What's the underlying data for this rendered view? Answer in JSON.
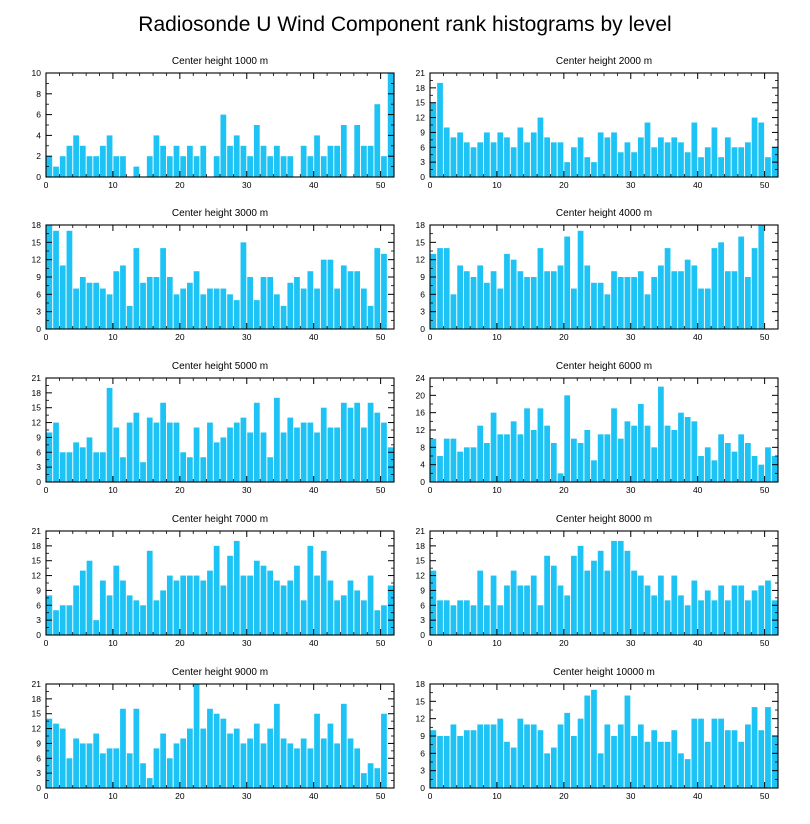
{
  "figure_title": "Radiosonde U Wind Component rank histograms by level",
  "colors": {
    "bar": "#1ec3f5",
    "bar_edge": "#ffffff",
    "axis": "#000000",
    "background": "#ffffff"
  },
  "chart_data": [
    {
      "type": "bar",
      "title": "Center height 1000 m",
      "xlim": [
        0,
        52
      ],
      "ylim": [
        0,
        10
      ],
      "xticks": [
        0,
        10,
        20,
        30,
        40,
        50
      ],
      "yticks": [
        0,
        2,
        4,
        6,
        8,
        10
      ],
      "values": [
        2,
        1,
        2,
        3,
        4,
        3,
        2,
        2,
        3,
        4,
        2,
        2,
        0,
        1,
        0,
        2,
        4,
        3,
        2,
        3,
        2,
        3,
        2,
        3,
        0,
        2,
        6,
        3,
        4,
        3,
        2,
        5,
        3,
        2,
        3,
        2,
        2,
        0,
        3,
        2,
        4,
        2,
        3,
        3,
        5,
        0,
        5,
        3,
        3,
        7,
        2,
        10
      ]
    },
    {
      "type": "bar",
      "title": "Center height 2000 m",
      "xlim": [
        0,
        52
      ],
      "ylim": [
        0,
        21
      ],
      "xticks": [
        0,
        10,
        20,
        30,
        40,
        50
      ],
      "yticks": [
        0,
        3,
        6,
        9,
        12,
        15,
        18,
        21
      ],
      "values": [
        15,
        19,
        10,
        8,
        9,
        7,
        6,
        7,
        9,
        7,
        9,
        8,
        6,
        10,
        7,
        9,
        12,
        8,
        7,
        7,
        3,
        6,
        8,
        4,
        3,
        9,
        8,
        9,
        5,
        7,
        5,
        8,
        11,
        6,
        8,
        7,
        8,
        7,
        5,
        11,
        4,
        6,
        10,
        4,
        8,
        6,
        6,
        7,
        12,
        11,
        4,
        6
      ]
    },
    {
      "type": "bar",
      "title": "Center height 3000 m",
      "xlim": [
        0,
        52
      ],
      "ylim": [
        0,
        18
      ],
      "xticks": [
        0,
        10,
        20,
        30,
        40,
        50
      ],
      "yticks": [
        0,
        3,
        6,
        9,
        12,
        15,
        18
      ],
      "values": [
        18,
        17,
        11,
        17,
        7,
        9,
        8,
        8,
        7,
        6,
        10,
        11,
        4,
        14,
        8,
        9,
        9,
        14,
        9,
        6,
        7,
        8,
        10,
        6,
        7,
        7,
        7,
        6,
        5,
        15,
        9,
        5,
        9,
        9,
        6,
        4,
        8,
        9,
        7,
        10,
        7,
        12,
        12,
        7,
        11,
        10,
        10,
        7,
        4,
        14,
        13,
        0
      ]
    },
    {
      "type": "bar",
      "title": "Center height 4000 m",
      "xlim": [
        0,
        52
      ],
      "ylim": [
        0,
        18
      ],
      "xticks": [
        0,
        10,
        20,
        30,
        40,
        50
      ],
      "yticks": [
        0,
        3,
        6,
        9,
        12,
        15,
        18
      ],
      "values": [
        13,
        14,
        14,
        6,
        11,
        10,
        9,
        11,
        8,
        10,
        7,
        13,
        12,
        10,
        9,
        9,
        14,
        10,
        10,
        11,
        16,
        7,
        17,
        11,
        8,
        8,
        6,
        10,
        9,
        9,
        9,
        10,
        6,
        9,
        11,
        14,
        10,
        10,
        12,
        11,
        7,
        7,
        14,
        15,
        10,
        10,
        16,
        9,
        14,
        18,
        0,
        0
      ]
    },
    {
      "type": "bar",
      "title": "Center height 5000 m",
      "xlim": [
        0,
        52
      ],
      "ylim": [
        0,
        21
      ],
      "xticks": [
        0,
        10,
        20,
        30,
        40,
        50
      ],
      "yticks": [
        0,
        3,
        6,
        9,
        12,
        15,
        18,
        21
      ],
      "values": [
        10,
        12,
        6,
        6,
        8,
        7,
        9,
        6,
        6,
        19,
        11,
        5,
        12,
        14,
        4,
        13,
        12,
        16,
        12,
        12,
        6,
        5,
        11,
        5,
        12,
        8,
        9,
        11,
        12,
        13,
        10,
        16,
        10,
        5,
        17,
        10,
        13,
        11,
        12,
        12,
        10,
        15,
        11,
        11,
        16,
        15,
        16,
        11,
        16,
        14,
        12,
        7
      ]
    },
    {
      "type": "bar",
      "title": "Center height 6000 m",
      "xlim": [
        0,
        52
      ],
      "ylim": [
        0,
        24
      ],
      "xticks": [
        0,
        10,
        20,
        30,
        40,
        50
      ],
      "yticks": [
        0,
        4,
        8,
        12,
        16,
        20,
        24
      ],
      "values": [
        10,
        6,
        10,
        10,
        7,
        8,
        8,
        13,
        9,
        16,
        11,
        11,
        14,
        11,
        17,
        12,
        17,
        13,
        9,
        2,
        20,
        10,
        9,
        12,
        5,
        11,
        11,
        17,
        10,
        14,
        13,
        18,
        13,
        8,
        22,
        13,
        12,
        16,
        15,
        14,
        6,
        8,
        5,
        11,
        9,
        7,
        11,
        9,
        6,
        4,
        8,
        6
      ]
    },
    {
      "type": "bar",
      "title": "Center height 7000 m",
      "xlim": [
        0,
        52
      ],
      "ylim": [
        0,
        21
      ],
      "xticks": [
        0,
        10,
        20,
        30,
        40,
        50
      ],
      "yticks": [
        0,
        3,
        6,
        9,
        12,
        15,
        18,
        21
      ],
      "values": [
        8,
        5,
        6,
        6,
        10,
        13,
        15,
        3,
        11,
        8,
        14,
        11,
        8,
        7,
        6,
        17,
        7,
        9,
        12,
        11,
        12,
        12,
        12,
        11,
        13,
        18,
        10,
        16,
        19,
        12,
        12,
        15,
        14,
        13,
        11,
        10,
        11,
        14,
        7,
        18,
        12,
        17,
        11,
        7,
        8,
        11,
        9,
        7,
        12,
        5,
        6,
        10
      ]
    },
    {
      "type": "bar",
      "title": "Center height 8000 m",
      "xlim": [
        0,
        52
      ],
      "ylim": [
        0,
        21
      ],
      "xticks": [
        0,
        10,
        20,
        30,
        40,
        50
      ],
      "yticks": [
        0,
        3,
        6,
        9,
        12,
        15,
        18,
        21
      ],
      "values": [
        13,
        7,
        7,
        6,
        7,
        7,
        6,
        13,
        6,
        12,
        6,
        10,
        13,
        10,
        10,
        12,
        6,
        16,
        14,
        10,
        8,
        16,
        18,
        13,
        15,
        17,
        13,
        19,
        19,
        17,
        13,
        12,
        10,
        8,
        12,
        7,
        12,
        8,
        6,
        11,
        7,
        9,
        7,
        10,
        7,
        10,
        10,
        7,
        9,
        10,
        11,
        7
      ]
    },
    {
      "type": "bar",
      "title": "Center height 9000 m",
      "xlim": [
        0,
        52
      ],
      "ylim": [
        0,
        21
      ],
      "xticks": [
        0,
        10,
        20,
        30,
        40,
        50
      ],
      "yticks": [
        0,
        3,
        6,
        9,
        12,
        15,
        18,
        21
      ],
      "values": [
        14,
        13,
        12,
        6,
        10,
        9,
        9,
        11,
        7,
        8,
        8,
        16,
        7,
        16,
        5,
        2,
        8,
        11,
        6,
        9,
        10,
        12,
        21,
        12,
        16,
        15,
        14,
        11,
        12,
        9,
        10,
        13,
        9,
        12,
        17,
        10,
        9,
        8,
        10,
        8,
        15,
        10,
        13,
        9,
        17,
        10,
        8,
        3,
        5,
        4,
        15,
        0
      ]
    },
    {
      "type": "bar",
      "title": "Center height 10000 m",
      "xlim": [
        0,
        52
      ],
      "ylim": [
        0,
        18
      ],
      "xticks": [
        0,
        10,
        20,
        30,
        40,
        50
      ],
      "yticks": [
        0,
        3,
        6,
        9,
        12,
        15,
        18
      ],
      "values": [
        10,
        9,
        9,
        11,
        9,
        10,
        10,
        11,
        11,
        11,
        12,
        8,
        7,
        12,
        11,
        11,
        10,
        6,
        7,
        11,
        13,
        9,
        12,
        16,
        17,
        6,
        11,
        9,
        11,
        16,
        9,
        11,
        8,
        10,
        8,
        8,
        10,
        6,
        5,
        12,
        12,
        8,
        12,
        12,
        10,
        10,
        8,
        11,
        14,
        10,
        14,
        9,
        17
      ]
    }
  ]
}
